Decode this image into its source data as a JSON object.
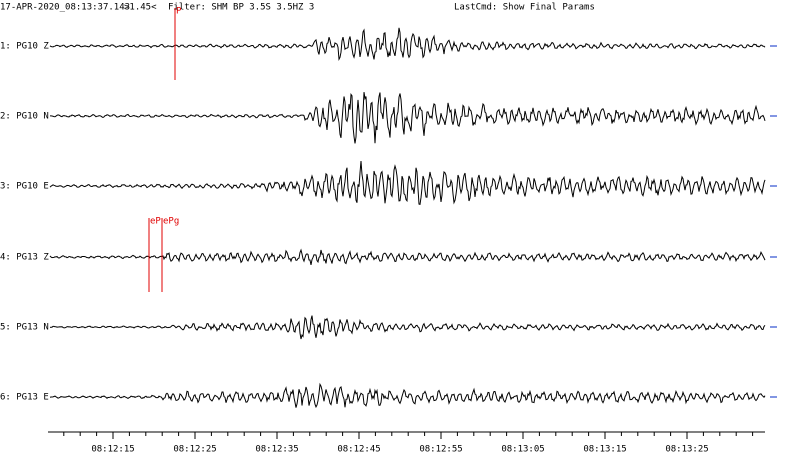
{
  "header": {
    "datetime": "17-APR-2020_08:13:37.143",
    "scale": ">1.45<",
    "filter": "Filter: SHM BP 3.5S 3.5HZ 3",
    "last_cmd": "LastCmd: Show Final Params"
  },
  "traces": [
    {
      "label": "1: PG10 Z"
    },
    {
      "label": "2: PG10 N"
    },
    {
      "label": "3: PG10 E"
    },
    {
      "label": "4: PG13 Z"
    },
    {
      "label": "5: PG13 N"
    },
    {
      "label": "6: PG13 E"
    }
  ],
  "picks": [
    {
      "label": "P"
    },
    {
      "label": "eP"
    },
    {
      "label": "ePg"
    }
  ],
  "time_axis": {
    "labels": [
      "08:12:15",
      "08:12:25",
      "08:12:35",
      "08:12:45",
      "08:12:55",
      "08:13:05",
      "08:13:15",
      "08:13:25"
    ]
  }
}
